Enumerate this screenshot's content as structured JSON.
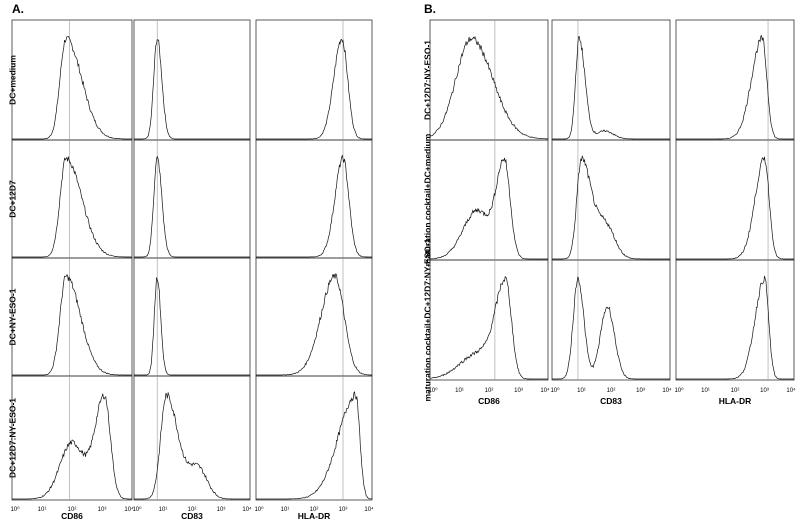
{
  "panels": [
    {
      "label": "A.",
      "rows": [
        "DC+medium",
        "DC+12D7",
        "DC+NY-ESO-1",
        "DC+12D7:NY-ESO-1"
      ],
      "columns": [
        "CD86",
        "CD83",
        "HLA-DR"
      ],
      "x_tick_labels": [
        "10⁰",
        "10¹",
        "10²",
        "10³",
        "10⁴"
      ]
    },
    {
      "label": "B.",
      "rows": [
        "DC+12D7:NY-ESO-1",
        "maturation cocktail+DC+medium",
        "maturation cocktail+DC+12D7:NY-ESO-1"
      ],
      "columns": [
        "CD86",
        "CD83",
        "HLA-DR"
      ],
      "x_tick_labels": [
        "10⁰",
        "10¹",
        "10²",
        "10³",
        "10⁴"
      ]
    }
  ]
}
